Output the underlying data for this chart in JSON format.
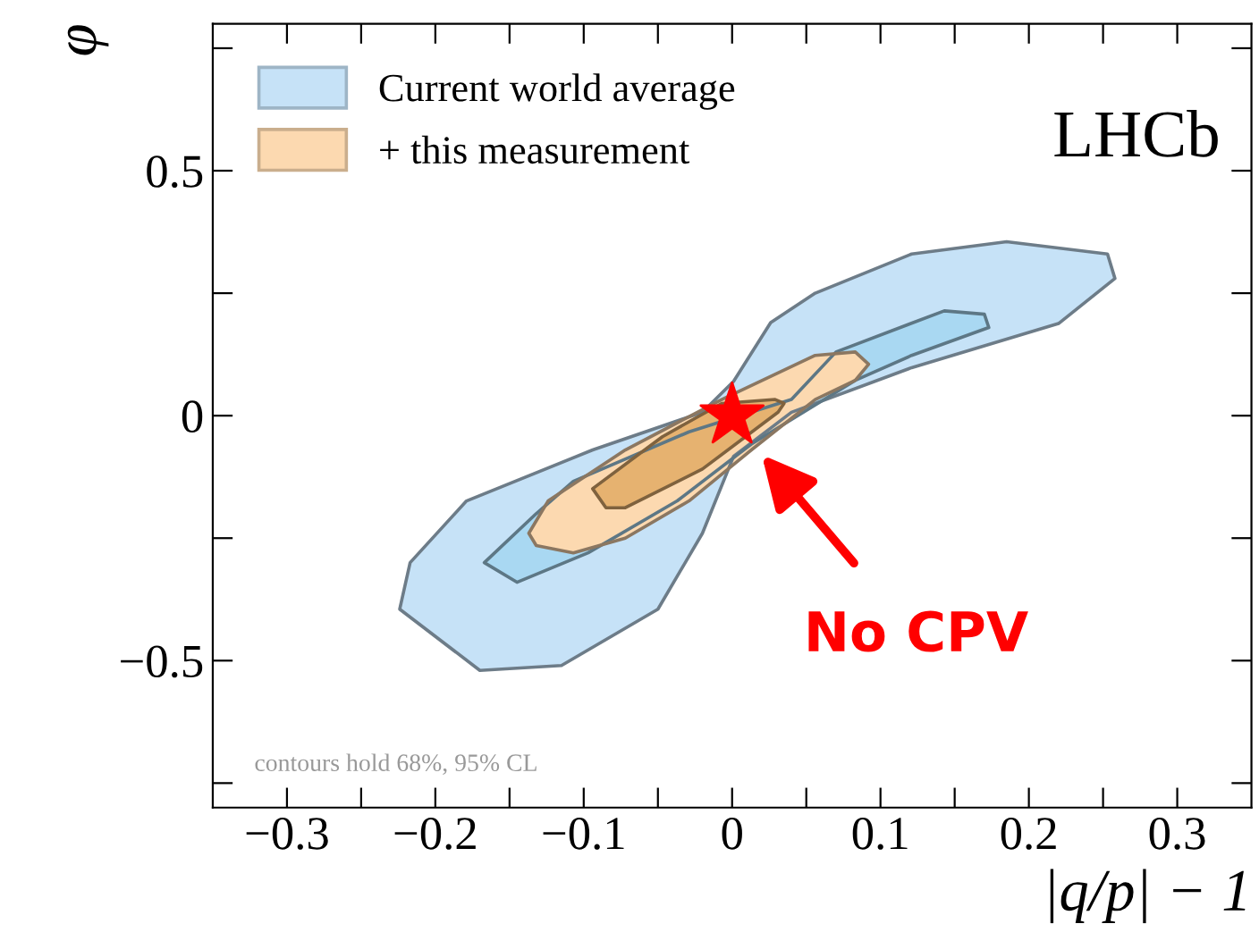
{
  "chart_data": {
    "type": "area",
    "xlabel": "|q/p| − 1",
    "ylabel": "φ",
    "xlim": [
      -0.35,
      0.35
    ],
    "ylim": [
      -0.8,
      0.8
    ],
    "xticks": [
      {
        "value": -0.3,
        "label": "−0.3"
      },
      {
        "value": -0.25,
        "label": null
      },
      {
        "value": -0.2,
        "label": "−0.2"
      },
      {
        "value": -0.15,
        "label": null
      },
      {
        "value": -0.1,
        "label": "−0.1"
      },
      {
        "value": -0.05,
        "label": null
      },
      0,
      {
        "value": 0.05,
        "label": null
      },
      0.1,
      {
        "value": 0.15,
        "label": null
      },
      0.2,
      {
        "value": 0.25,
        "label": null
      },
      0.3
    ],
    "yticks": [
      {
        "value": -0.75,
        "label": null
      },
      {
        "value": -0.5,
        "label": "−0.5"
      },
      {
        "value": -0.25,
        "label": null
      },
      0,
      {
        "value": 0.25,
        "label": null
      },
      0.5,
      {
        "value": 0.75,
        "label": null
      }
    ],
    "grid": false,
    "legend": "top left",
    "series": [
      {
        "name": "Current world average",
        "color": "#c6e2f7",
        "x": [
          -0.224,
          -0.17,
          -0.115,
          -0.05,
          -0.02,
          0.001,
          0.04,
          0.121,
          0.22,
          0.258,
          0.253,
          0.185,
          0.121,
          0.056,
          0.026,
          0.001,
          -0.02,
          -0.094,
          -0.179,
          -0.217
        ],
        "values": [
          -0.395,
          -0.52,
          -0.51,
          -0.395,
          -0.24,
          -0.083,
          0.007,
          0.098,
          0.188,
          0.28,
          0.33,
          0.355,
          0.33,
          0.25,
          0.19,
          0.07,
          0.007,
          -0.07,
          -0.174,
          -0.3
        ]
      },
      {
        "color": "#a9d8f2",
        "x": [
          0.17,
          0.143,
          0.07,
          0.04,
          -0.029,
          -0.107,
          -0.132,
          -0.167,
          -0.145,
          -0.097,
          -0.037,
          0.013,
          0.083,
          0.121,
          0.173
        ],
        "values": [
          0.207,
          0.214,
          0.13,
          0.033,
          -0.033,
          -0.134,
          -0.2,
          -0.3,
          -0.34,
          -0.28,
          -0.174,
          -0.058,
          0.072,
          0.123,
          0.18
        ]
      },
      {
        "name": "+ this measurement",
        "color": "#fcd9b0",
        "x": [
          -0.137,
          -0.124,
          -0.072,
          -0.007,
          0.056,
          0.083,
          0.092,
          0.083,
          0.056,
          0.013,
          -0.029,
          -0.072,
          -0.107,
          -0.132
        ],
        "values": [
          -0.24,
          -0.174,
          -0.07,
          0.033,
          0.123,
          0.13,
          0.105,
          0.072,
          0.033,
          -0.07,
          -0.174,
          -0.25,
          -0.28,
          -0.265
        ]
      },
      {
        "color": "#e6b270",
        "x": [
          -0.094,
          -0.085,
          -0.072,
          -0.02,
          0.031,
          0.035,
          0.029,
          -0.007,
          -0.047
        ],
        "values": [
          -0.149,
          -0.188,
          -0.188,
          -0.109,
          0.007,
          0.025,
          0.033,
          0.025,
          -0.043
        ]
      },
      {
        "type": "scatter",
        "marker": "star",
        "color": "#ff0000",
        "x": [
          0
        ],
        "values": [
          0
        ]
      }
    ],
    "annotations": [
      "LHCb",
      "contours hold 68%, 95% CL",
      {
        "text": "No CPV",
        "x": 0.02,
        "y": -0.08
      }
    ]
  }
}
